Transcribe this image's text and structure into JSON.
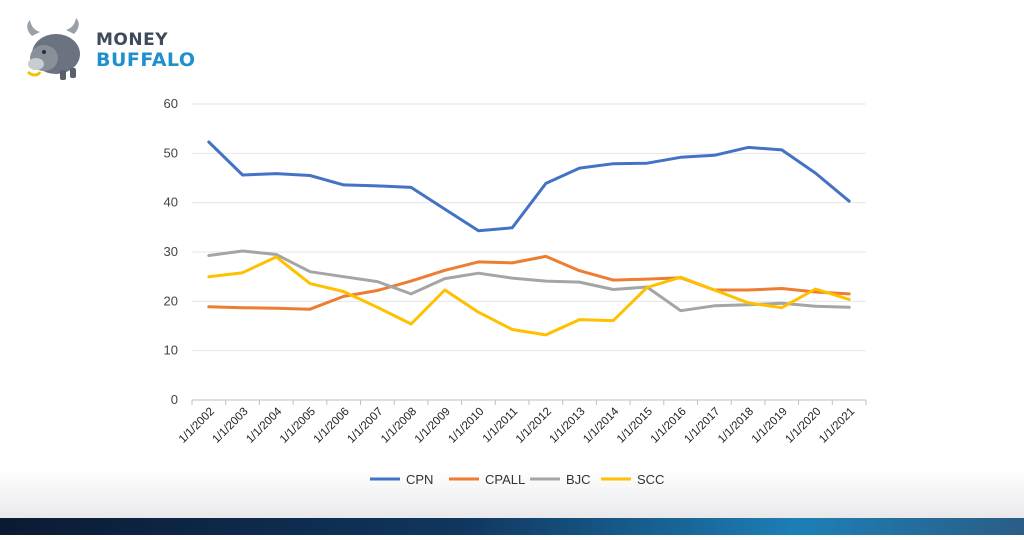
{
  "brand": {
    "line1": "MONEY",
    "line2": "BUFFALO"
  },
  "colors": {
    "CPN": "#4472c4",
    "CPALL": "#ed7d31",
    "BJC": "#a5a5a5",
    "SCC": "#ffc000",
    "axis": "#bfbfbf",
    "brand_blue": "#1f8fce",
    "brand_dark": "#3f4a5a"
  },
  "chart_data": {
    "type": "line",
    "title": "",
    "xlabel": "",
    "ylabel": "",
    "ylim": [
      0,
      60
    ],
    "yticks": [
      0,
      10,
      20,
      30,
      40,
      50,
      60
    ],
    "grid": true,
    "legend_position": "bottom",
    "categories": [
      "1/1/2002",
      "1/1/2003",
      "1/1/2004",
      "1/1/2005",
      "1/1/2006",
      "1/1/2007",
      "1/1/2008",
      "1/1/2009",
      "1/1/2010",
      "1/1/2011",
      "1/1/2012",
      "1/1/2013",
      "1/1/2014",
      "1/1/2015",
      "1/1/2016",
      "1/1/2017",
      "1/1/2018",
      "1/1/2019",
      "1/1/2020",
      "1/1/2021"
    ],
    "series": [
      {
        "name": "CPN",
        "values": [
          52.3,
          45.6,
          45.9,
          45.5,
          43.6,
          43.4,
          43.1,
          38.7,
          34.3,
          34.9,
          43.9,
          47.0,
          47.9,
          48.0,
          49.2,
          49.6,
          51.2,
          50.7,
          46.0,
          40.3
        ]
      },
      {
        "name": "CPALL",
        "values": [
          18.9,
          18.7,
          18.6,
          18.4,
          21.0,
          22.2,
          24.1,
          26.3,
          28.0,
          27.8,
          29.1,
          26.2,
          24.3,
          24.5,
          24.8,
          22.3,
          22.3,
          22.6,
          21.9,
          21.5
        ]
      },
      {
        "name": "BJC",
        "values": [
          29.3,
          30.2,
          29.5,
          26.0,
          25.0,
          24.0,
          21.5,
          24.6,
          25.7,
          24.7,
          24.1,
          23.9,
          22.4,
          22.9,
          18.1,
          19.1,
          19.3,
          19.6,
          19.0,
          18.8
        ]
      },
      {
        "name": "SCC",
        "values": [
          25.0,
          25.8,
          29.0,
          23.6,
          22.0,
          18.8,
          15.4,
          22.3,
          17.8,
          14.3,
          13.2,
          16.3,
          16.1,
          22.8,
          24.9,
          22.3,
          19.7,
          18.7,
          22.5,
          20.4
        ]
      }
    ]
  }
}
